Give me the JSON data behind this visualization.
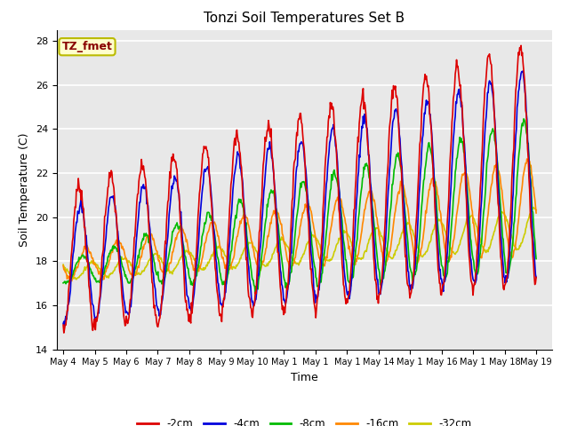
{
  "title": "Tonzi Soil Temperatures Set B",
  "xlabel": "Time",
  "ylabel": "Soil Temperature (C)",
  "ylim": [
    14,
    28.5
  ],
  "xlim_days": [
    -0.2,
    15.5
  ],
  "background_color": "#ffffff",
  "plot_bg_color": "#e8e8e8",
  "grid_color": "#ffffff",
  "annotation_text": "TZ_fmet",
  "annotation_bg": "#ffffcc",
  "annotation_border": "#bbbb00",
  "annotation_text_color": "#880000",
  "series": {
    "-2cm": {
      "color": "#dd0000",
      "lw": 1.2
    },
    "-4cm": {
      "color": "#0000dd",
      "lw": 1.2
    },
    "-8cm": {
      "color": "#00bb00",
      "lw": 1.2
    },
    "-16cm": {
      "color": "#ff8800",
      "lw": 1.2
    },
    "-32cm": {
      "color": "#cccc00",
      "lw": 1.2
    }
  }
}
